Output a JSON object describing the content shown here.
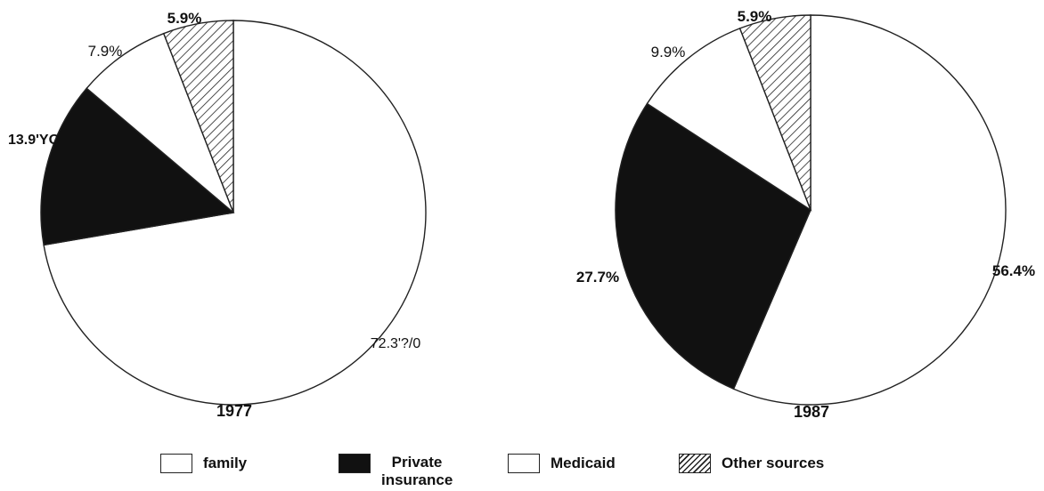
{
  "chart_data": [
    {
      "type": "pie",
      "title": "1977",
      "slices": [
        {
          "category": "family",
          "value": 72.3,
          "label": "72.3'?/0"
        },
        {
          "category": "Private insurance",
          "value": 13.9,
          "label": "13.9'YO"
        },
        {
          "category": "Medicaid",
          "value": 7.9,
          "label": "7.9%"
        },
        {
          "category": "Other sources",
          "value": 5.9,
          "label": "5.9%"
        }
      ]
    },
    {
      "type": "pie",
      "title": "1987",
      "slices": [
        {
          "category": "family",
          "value": 56.4,
          "label": "56.4%"
        },
        {
          "category": "Private insurance",
          "value": 27.7,
          "label": "27.7%"
        },
        {
          "category": "Medicaid",
          "value": 9.9,
          "label": "9.9%"
        },
        {
          "category": "Other sources",
          "value": 5.9,
          "label": "5.9%"
        }
      ]
    }
  ],
  "legend": [
    {
      "label": "family",
      "fill": "white"
    },
    {
      "label": "Private insurance",
      "fill": "black"
    },
    {
      "label": "Medicaid",
      "fill": "white"
    },
    {
      "label": "Other sources",
      "fill": "hatch"
    }
  ],
  "colors": {
    "family": "#ffffff",
    "private_insurance": "#111111",
    "medicaid": "#ffffff",
    "other_sources": "hatch",
    "outline": "#222222"
  }
}
